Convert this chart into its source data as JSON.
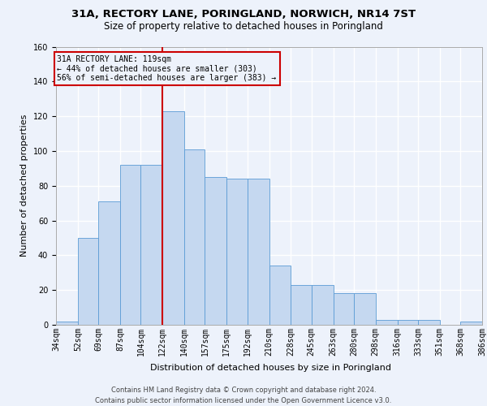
{
  "title1": "31A, RECTORY LANE, PORINGLAND, NORWICH, NR14 7ST",
  "title2": "Size of property relative to detached houses in Poringland",
  "xlabel": "Distribution of detached houses by size in Poringland",
  "ylabel": "Number of detached properties",
  "bin_edges": [
    34,
    52,
    69,
    87,
    104,
    122,
    140,
    157,
    175,
    192,
    210,
    228,
    245,
    263,
    280,
    298,
    316,
    333,
    351,
    368,
    386
  ],
  "bin_labels": [
    "34sqm",
    "52sqm",
    "69sqm",
    "87sqm",
    "104sqm",
    "122sqm",
    "140sqm",
    "157sqm",
    "175sqm",
    "192sqm",
    "210sqm",
    "228sqm",
    "245sqm",
    "263sqm",
    "280sqm",
    "298sqm",
    "316sqm",
    "333sqm",
    "351sqm",
    "368sqm",
    "386sqm"
  ],
  "heights": [
    2,
    50,
    71,
    92,
    92,
    123,
    101,
    85,
    84,
    84,
    34,
    23,
    23,
    18,
    18,
    3,
    3,
    3,
    0,
    2
  ],
  "bar_facecolor": "#c5d8f0",
  "bar_edgecolor": "#5b9bd5",
  "bg_color": "#edf2fb",
  "grid_color": "#ffffff",
  "vline_x": 122,
  "vline_color": "#cc0000",
  "ylim_max": 160,
  "yticks": [
    0,
    20,
    40,
    60,
    80,
    100,
    120,
    140,
    160
  ],
  "ann_title": "31A RECTORY LANE: 119sqm",
  "ann_line1": "← 44% of detached houses are smaller (303)",
  "ann_line2": "56% of semi-detached houses are larger (383) →",
  "footer1": "Contains HM Land Registry data © Crown copyright and database right 2024.",
  "footer2": "Contains public sector information licensed under the Open Government Licence v3.0.",
  "title1_fontsize": 9.5,
  "title2_fontsize": 8.5,
  "xlabel_fontsize": 8.0,
  "ylabel_fontsize": 8.0,
  "footer_fontsize": 6.0,
  "ann_fontsize": 7.0,
  "tick_fontsize": 7.0
}
